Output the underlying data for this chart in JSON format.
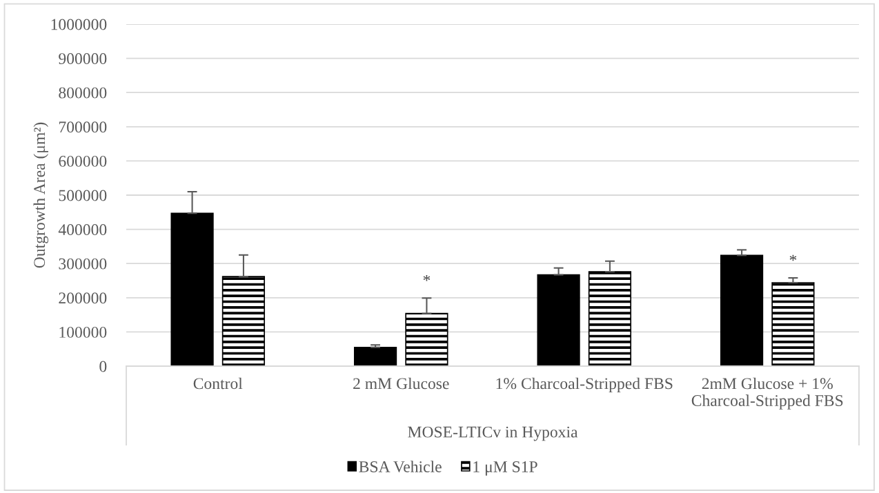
{
  "chart_data": {
    "type": "bar",
    "categories": [
      "Control",
      "2 mM Glucose",
      "1% Charcoal-Stripped FBS",
      "2mM Glucose + 1%\nCharcoal-Stripped FBS"
    ],
    "xlabel": "MOSE-LTICv in Hypoxia",
    "ylabel": "Outgrowth Area (μm²)",
    "series": [
      {
        "name": "BSA Vehicle",
        "color": "#000000",
        "values": [
          447000,
          55000,
          267000,
          324000
        ],
        "errors": [
          [
            447000,
            510000
          ],
          [
            55000,
            62000
          ],
          [
            267000,
            287000
          ],
          [
            324000,
            340000
          ]
        ]
      },
      {
        "name": "1 μM S1P",
        "color": "#000000",
        "values": [
          262000,
          154000,
          276000,
          244000
        ],
        "errors": [
          [
            262000,
            325000
          ],
          [
            154000,
            199000
          ],
          [
            276000,
            307000
          ],
          [
            244000,
            258000
          ]
        ],
        "value_labels": [
          null,
          "*",
          null,
          "*"
        ]
      }
    ],
    "ylim": [
      0,
      1000000
    ],
    "yticks": [
      0,
      100000,
      200000,
      300000,
      400000,
      500000,
      600000,
      700000,
      800000,
      900000,
      1000000
    ],
    "grid": "y",
    "legend": "bottom"
  }
}
